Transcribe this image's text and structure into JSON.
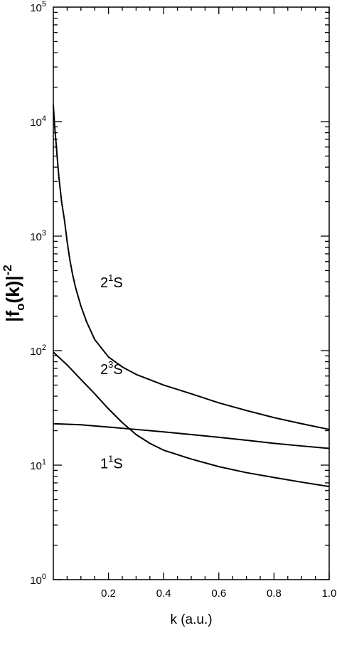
{
  "chart_data": {
    "type": "line",
    "xlabel": "k (a.u.)",
    "ylabel_main": "|f",
    "ylabel_sub": "o",
    "ylabel_arg": "(k)|",
    "ylabel_sup": "-2",
    "xlim": [
      0.0,
      1.0
    ],
    "ylim": [
      1,
      100000
    ],
    "yscale": "log",
    "grid": false,
    "x_ticks": [
      0.2,
      0.4,
      0.6,
      0.8,
      1.0
    ],
    "x_tick_labels": [
      "0.2",
      "0.4",
      "0.6",
      "0.8",
      "1.0"
    ],
    "y_ticks": [
      1,
      10,
      100,
      1000,
      10000,
      100000
    ],
    "y_tick_base": "10",
    "y_tick_exponents": [
      "0",
      "1",
      "2",
      "3",
      "4",
      "5"
    ],
    "series": [
      {
        "label_main": "2",
        "label_sup": "1",
        "label_tail": "S",
        "label_at": [
          0.17,
          400
        ],
        "points": [
          [
            0.0,
            14000
          ],
          [
            0.005,
            9000
          ],
          [
            0.01,
            6500
          ],
          [
            0.015,
            4600
          ],
          [
            0.02,
            3300
          ],
          [
            0.03,
            2000
          ],
          [
            0.04,
            1400
          ],
          [
            0.05,
            900
          ],
          [
            0.06,
            620
          ],
          [
            0.07,
            460
          ],
          [
            0.08,
            360
          ],
          [
            0.1,
            245
          ],
          [
            0.12,
            180
          ],
          [
            0.15,
            125
          ],
          [
            0.2,
            88
          ],
          [
            0.25,
            72
          ],
          [
            0.3,
            62
          ],
          [
            0.4,
            50
          ],
          [
            0.5,
            42
          ],
          [
            0.6,
            35
          ],
          [
            0.7,
            30
          ],
          [
            0.8,
            26
          ],
          [
            0.9,
            23
          ],
          [
            1.0,
            20.5
          ]
        ]
      },
      {
        "label_main": "2",
        "label_sup": "3",
        "label_tail": "S",
        "label_at": [
          0.17,
          70
        ],
        "points": [
          [
            0.0,
            97
          ],
          [
            0.05,
            75
          ],
          [
            0.1,
            56
          ],
          [
            0.15,
            42
          ],
          [
            0.2,
            31
          ],
          [
            0.25,
            23.5
          ],
          [
            0.3,
            18.5
          ],
          [
            0.35,
            15.5
          ],
          [
            0.4,
            13.5
          ],
          [
            0.5,
            11.3
          ],
          [
            0.6,
            9.7
          ],
          [
            0.7,
            8.6
          ],
          [
            0.8,
            7.8
          ],
          [
            0.9,
            7.1
          ],
          [
            1.0,
            6.5
          ]
        ]
      },
      {
        "label_main": "1",
        "label_sup": "1",
        "label_tail": "S",
        "label_at": [
          0.17,
          10.5
        ],
        "points": [
          [
            0.0,
            23
          ],
          [
            0.1,
            22.5
          ],
          [
            0.2,
            21.5
          ],
          [
            0.3,
            20.5
          ],
          [
            0.4,
            19.5
          ],
          [
            0.5,
            18.5
          ],
          [
            0.6,
            17.5
          ],
          [
            0.7,
            16.5
          ],
          [
            0.8,
            15.5
          ],
          [
            0.9,
            14.7
          ],
          [
            1.0,
            14
          ]
        ]
      }
    ]
  }
}
